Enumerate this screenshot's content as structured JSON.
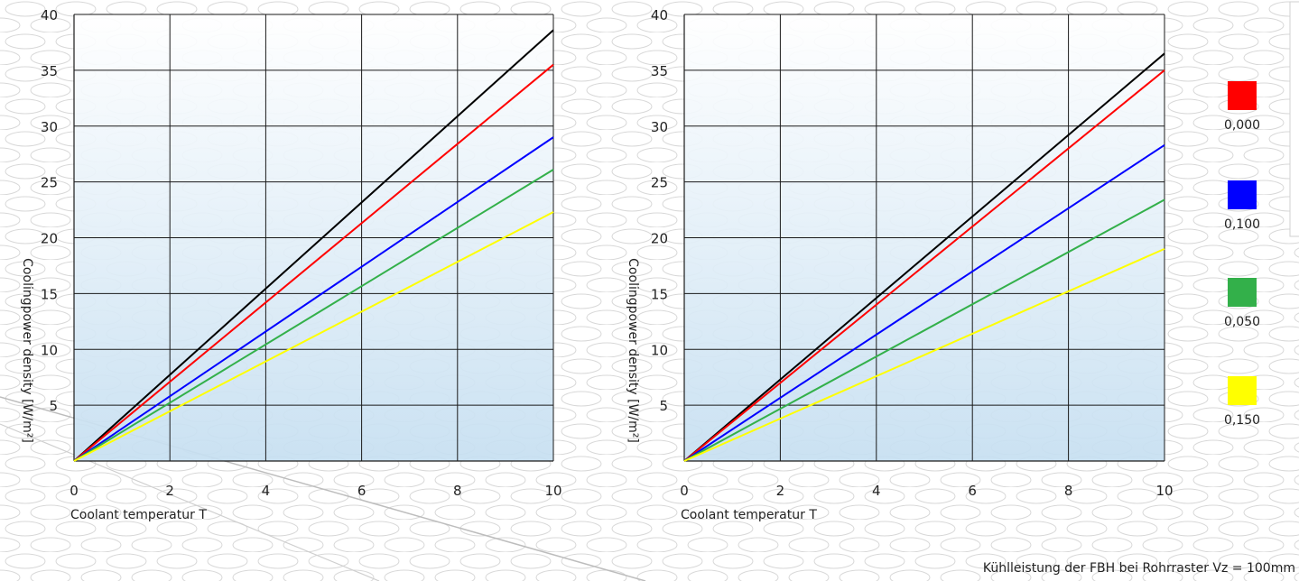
{
  "chart_data": [
    {
      "type": "line",
      "xlabel": "Coolant temperatur T",
      "ylabel": "Coolingpower density [W/m²]",
      "xlim": [
        0,
        10
      ],
      "ylim": [
        0,
        40
      ],
      "x_ticks": [
        "0",
        "2",
        "4",
        "6",
        "8",
        "10"
      ],
      "y_ticks": [
        "5",
        "10",
        "15",
        "20",
        "25",
        "30",
        "35",
        "40"
      ],
      "grid": true,
      "series": [
        {
          "color": "#000000",
          "x": [
            0,
            10
          ],
          "y": [
            0,
            38.6
          ]
        },
        {
          "color": "#ff0000",
          "x": [
            0,
            10
          ],
          "y": [
            0,
            35.5
          ]
        },
        {
          "color": "#0000ff",
          "x": [
            0,
            10
          ],
          "y": [
            0,
            29.0
          ]
        },
        {
          "color": "#33b04a",
          "x": [
            0,
            10
          ],
          "y": [
            0,
            26.1
          ]
        },
        {
          "color": "#ffff00",
          "x": [
            0,
            10
          ],
          "y": [
            0,
            22.3
          ]
        }
      ]
    },
    {
      "type": "line",
      "xlabel": "Coolant temperatur T",
      "ylabel": "Coolingpower density [W/m²]",
      "xlim": [
        0,
        10
      ],
      "ylim": [
        0,
        40
      ],
      "x_ticks": [
        "0",
        "2",
        "4",
        "6",
        "8",
        "10"
      ],
      "y_ticks": [
        "5",
        "10",
        "15",
        "20",
        "25",
        "30",
        "35",
        "40"
      ],
      "grid": true,
      "series": [
        {
          "color": "#000000",
          "x": [
            0,
            10
          ],
          "y": [
            0,
            36.5
          ]
        },
        {
          "color": "#ff0000",
          "x": [
            0,
            10
          ],
          "y": [
            0,
            35.0
          ]
        },
        {
          "color": "#0000ff",
          "x": [
            0,
            10
          ],
          "y": [
            0,
            28.3
          ]
        },
        {
          "color": "#33b04a",
          "x": [
            0,
            10
          ],
          "y": [
            0,
            23.4
          ]
        },
        {
          "color": "#ffff00",
          "x": [
            0,
            10
          ],
          "y": [
            0,
            19.0
          ]
        }
      ]
    }
  ],
  "legend": {
    "placement": "right",
    "items": [
      {
        "label": "0,000",
        "color": "#ff0000"
      },
      {
        "label": "0,100",
        "color": "#0000ff"
      },
      {
        "label": "0,050",
        "color": "#33b04a"
      },
      {
        "label": "0,150",
        "color": "#ffff00"
      }
    ]
  },
  "footer": {
    "note": "Kühlleistung der FBH bei Rohrraster Vz = 100mm"
  }
}
